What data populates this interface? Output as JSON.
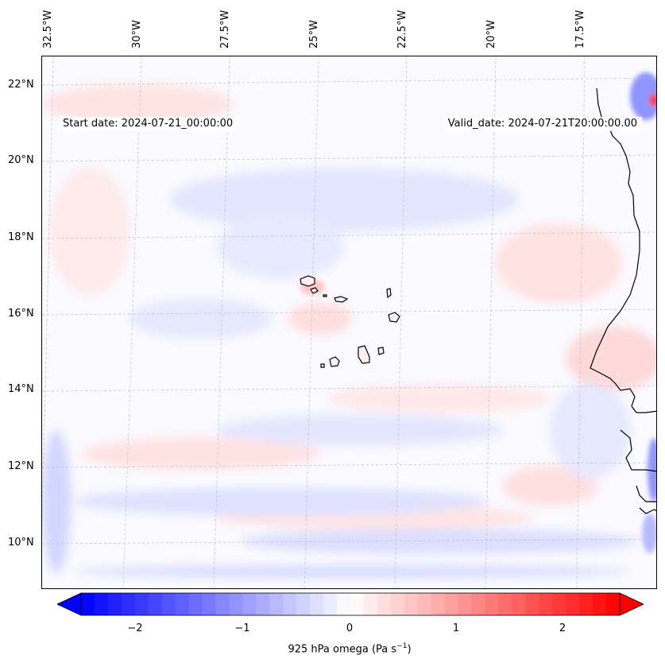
{
  "header": {
    "start_date": "Start date: 2024-07-21_00:00:00",
    "valid_date": "Valid_date: 2024-07-21T20:00:00.00"
  },
  "lon_labels": [
    "32.5°W",
    "30°W",
    "27.5°W",
    "25°W",
    "22.5°W",
    "20°W",
    "17.5°W"
  ],
  "lat_labels": [
    "22°N",
    "20°N",
    "18°N",
    "16°N",
    "14°N",
    "12°N",
    "10°N"
  ],
  "colorbar": {
    "ticks": [
      "−2",
      "−1",
      "0",
      "1",
      "2"
    ],
    "label_main": "925 hPa omega (Pa s",
    "label_sup": "−1",
    "label_end": ")",
    "min": -2.5,
    "max": 2.5,
    "colors": {
      "negative": "#0000ff",
      "zero": "#ffffff",
      "positive": "#ff0000"
    }
  },
  "map": {
    "field": "925 hPa omega",
    "units": "Pa s⁻¹",
    "colormap": "bwr",
    "gridlines": true,
    "coastlines": true,
    "region": "Cape Verde Islands and West African coast"
  }
}
